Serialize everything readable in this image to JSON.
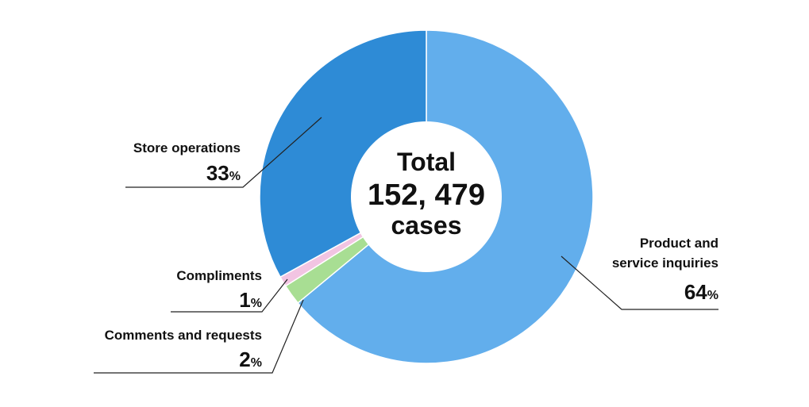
{
  "chart_data": {
    "type": "pie",
    "center_label": {
      "line1": "Total",
      "line2": "152, 479",
      "line3": "cases"
    },
    "unit": "%",
    "slices": [
      {
        "label_lines": [
          "Product and",
          "service inquiries"
        ],
        "value": 64,
        "color": "#62AEEC"
      },
      {
        "label_lines": [
          "Comments and requests"
        ],
        "value": 2,
        "color": "#A8DE93"
      },
      {
        "label_lines": [
          "Compliments"
        ],
        "value": 1,
        "color": "#F2C4E2"
      },
      {
        "label_lines": [
          "Store operations"
        ],
        "value": 33,
        "color": "#2E8BD6"
      }
    ],
    "legend": "none"
  }
}
